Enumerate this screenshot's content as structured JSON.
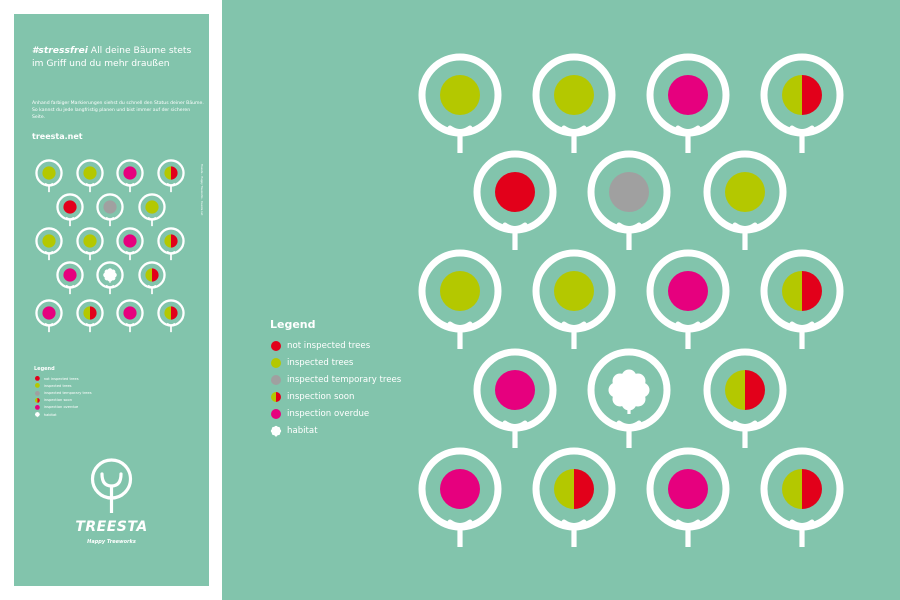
{
  "colors": {
    "background": "#82c4ac",
    "white": "#ffffff",
    "not_inspected": "#e2001a",
    "inspected": "#b4c800",
    "temporary": "#a0a0a0",
    "overdue": "#e6007e"
  },
  "banner": {
    "hashtag": "#stressfrei",
    "headline": " All deine Bäume stets im Griff und du mehr draußen",
    "body": "Anhand farbiger Markierungen siehst du schnell den Status deiner Bäume. So kannst du jede langfristig planen und bist immer auf der sicheren Seite.",
    "url": "treesta.net",
    "side_note": "Treesta – Happy Treeworks · treesta.net",
    "legend_title": "Legend",
    "brand_name": "TREESTA",
    "brand_tagline": "Happy Treeworks",
    "trees_rows": [
      [
        "inspected",
        "inspected",
        "overdue",
        "soon"
      ],
      [
        "not_inspected",
        "temporary",
        "inspected"
      ],
      [
        "inspected",
        "inspected",
        "overdue",
        "soon"
      ],
      [
        "overdue",
        "habitat",
        "soon"
      ],
      [
        "overdue",
        "soon",
        "overdue",
        "soon"
      ]
    ]
  },
  "legend": {
    "title": "Legend",
    "items": [
      {
        "status": "not_inspected",
        "label": "not inspected trees"
      },
      {
        "status": "inspected",
        "label": "inspected trees"
      },
      {
        "status": "temporary",
        "label": "inspected temporary trees"
      },
      {
        "status": "soon",
        "label": "inspection soon"
      },
      {
        "status": "overdue",
        "label": "inspection overdue"
      },
      {
        "status": "habitat",
        "label": "habitat"
      }
    ]
  },
  "trees_rows": [
    [
      "inspected",
      "inspected",
      "overdue",
      "soon"
    ],
    [
      "not_inspected",
      "temporary",
      "inspected"
    ],
    [
      "inspected",
      "inspected",
      "overdue",
      "soon"
    ],
    [
      "overdue",
      "habitat",
      "soon"
    ],
    [
      "overdue",
      "soon",
      "overdue",
      "soon"
    ]
  ]
}
